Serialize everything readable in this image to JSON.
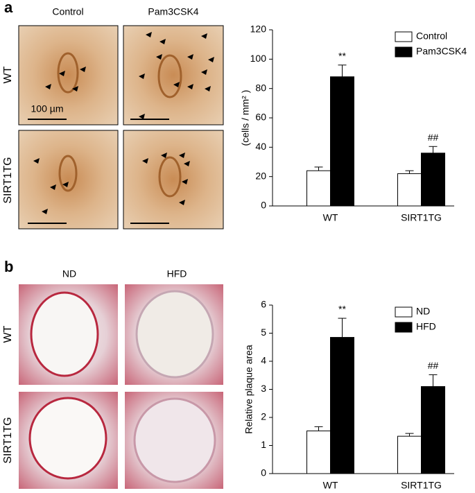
{
  "figure": {
    "panels": [
      {
        "label": "a",
        "columns": [
          "Control",
          "Pam3CSK4"
        ],
        "rows": [
          "WT",
          "SIRT1TG"
        ],
        "scale_bar": "100 µm"
      },
      {
        "label": "b",
        "columns": [
          "ND",
          "HFD"
        ],
        "rows": [
          "WT",
          "SIRT1TG"
        ]
      }
    ]
  },
  "chart_data": [
    {
      "type": "bar",
      "y_label": "(cells / mm² )",
      "categories": [
        "WT",
        "SIRT1TG"
      ],
      "series": [
        {
          "name": "Control",
          "color": "#ffffff",
          "values": [
            24,
            22
          ],
          "errors": [
            2.5,
            2
          ]
        },
        {
          "name": "Pam3CSK4",
          "color": "#000000",
          "values": [
            88,
            36
          ],
          "errors": [
            8,
            4.5
          ],
          "marks": [
            "**",
            "##"
          ]
        }
      ],
      "ylim": [
        0,
        120
      ],
      "yticks": [
        0,
        20,
        40,
        60,
        80,
        100,
        120
      ],
      "grid": false,
      "legend": "top-right"
    },
    {
      "type": "bar",
      "y_label": "Relative plaque area",
      "categories": [
        "WT",
        "SIRT1TG"
      ],
      "series": [
        {
          "name": "ND",
          "color": "#ffffff",
          "values": [
            1.52,
            1.33
          ],
          "errors": [
            0.15,
            0.1
          ]
        },
        {
          "name": "HFD",
          "color": "#000000",
          "values": [
            4.85,
            3.1
          ],
          "errors": [
            0.68,
            0.42
          ],
          "marks": [
            "**",
            "##"
          ]
        }
      ],
      "ylim": [
        0,
        6
      ],
      "yticks": [
        0,
        1,
        2,
        3,
        4,
        5,
        6
      ],
      "grid": false,
      "legend": "top-right"
    }
  ]
}
